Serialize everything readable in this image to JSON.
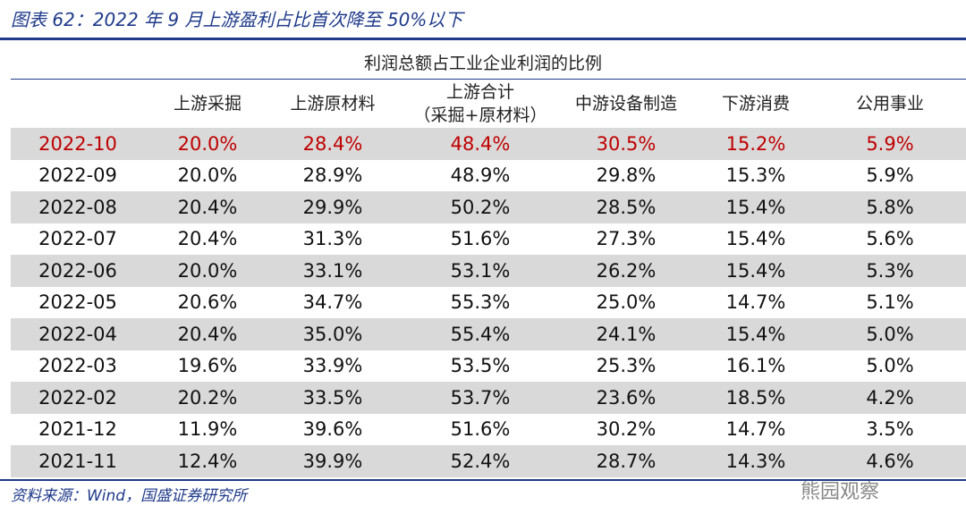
{
  "header": {
    "title": "图表 62：2022 年 9 月上游盈利占比首次降至 50%以下"
  },
  "table": {
    "group_header": "利润总额占工业企业利润的比例",
    "columns": [
      [
        "上游采掘"
      ],
      [
        "上游原材料"
      ],
      [
        "上游合计",
        "（采掘+原材料）"
      ],
      [
        "中游设备制造"
      ],
      [
        "下游消费"
      ],
      [
        "公用事业"
      ]
    ],
    "rows": [
      [
        "2022-10",
        "20.0%",
        "28.4%",
        "48.4%",
        "30.5%",
        "15.2%",
        "5.9%"
      ],
      [
        "2022-09",
        "20.0%",
        "28.9%",
        "48.9%",
        "29.8%",
        "15.3%",
        "5.9%"
      ],
      [
        "2022-08",
        "20.4%",
        "29.9%",
        "50.2%",
        "28.5%",
        "15.4%",
        "5.8%"
      ],
      [
        "2022-07",
        "20.4%",
        "31.3%",
        "51.6%",
        "27.3%",
        "15.4%",
        "5.6%"
      ],
      [
        "2022-06",
        "20.0%",
        "33.1%",
        "53.1%",
        "26.2%",
        "15.4%",
        "5.3%"
      ],
      [
        "2022-05",
        "20.6%",
        "34.7%",
        "55.3%",
        "25.0%",
        "14.7%",
        "5.1%"
      ],
      [
        "2022-04",
        "20.4%",
        "35.0%",
        "55.4%",
        "24.1%",
        "15.4%",
        "5.0%"
      ],
      [
        "2022-03",
        "19.6%",
        "33.9%",
        "53.5%",
        "25.3%",
        "16.1%",
        "5.0%"
      ],
      [
        "2022-02",
        "20.2%",
        "33.5%",
        "53.7%",
        "23.6%",
        "18.5%",
        "4.2%"
      ],
      [
        "2021-12",
        "11.9%",
        "39.6%",
        "51.6%",
        "30.2%",
        "14.7%",
        "3.5%"
      ],
      [
        "2021-11",
        "12.4%",
        "39.9%",
        "52.4%",
        "28.7%",
        "14.3%",
        "4.6%"
      ]
    ]
  },
  "footer": {
    "source": "资料来源：Wind，国盛证券研究所",
    "watermark": "熊园观察"
  }
}
